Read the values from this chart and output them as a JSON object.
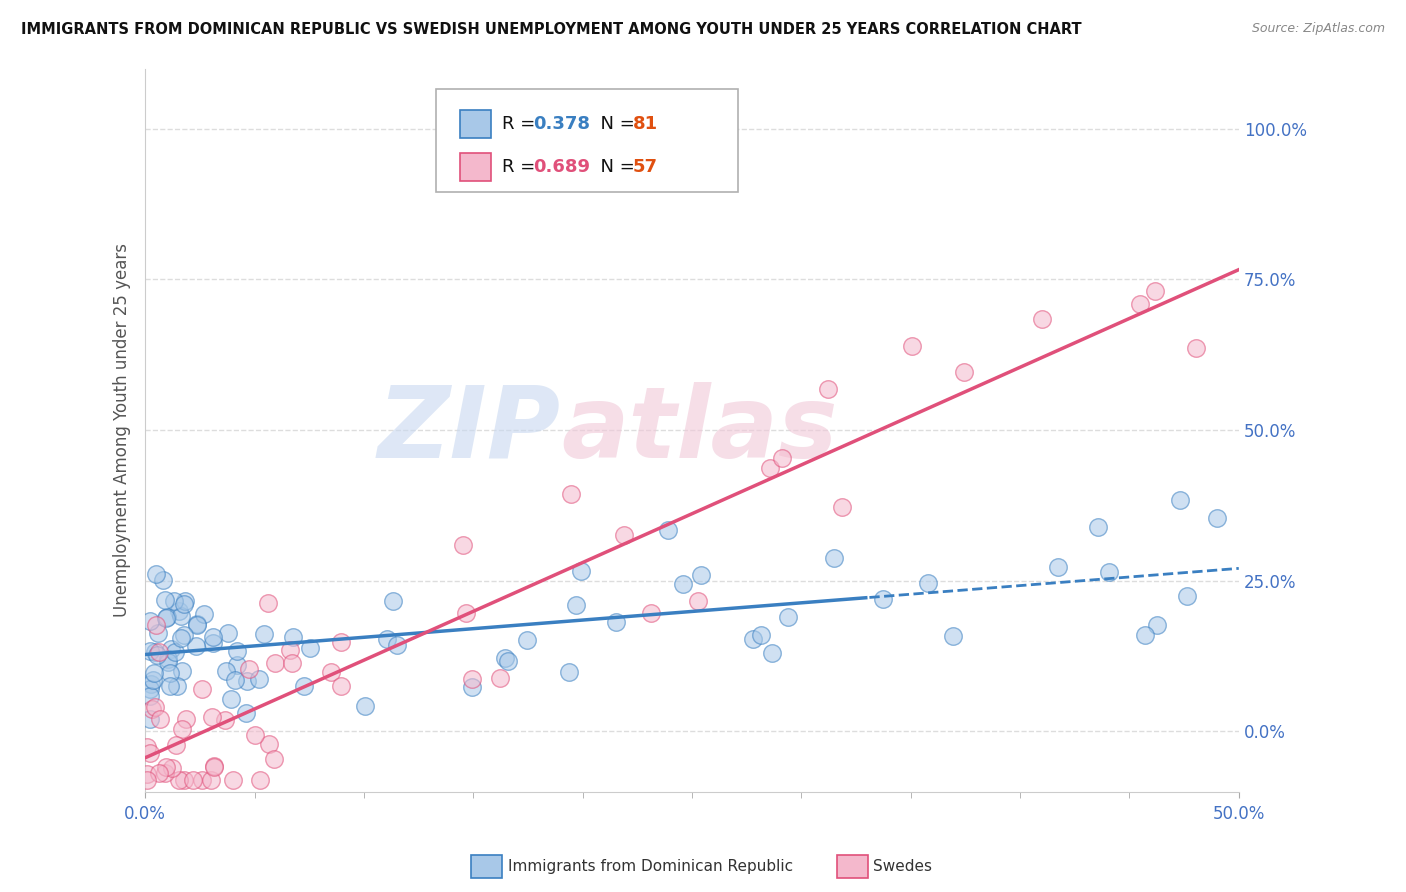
{
  "title": "IMMIGRANTS FROM DOMINICAN REPUBLIC VS SWEDISH UNEMPLOYMENT AMONG YOUTH UNDER 25 YEARS CORRELATION CHART",
  "source": "Source: ZipAtlas.com",
  "ylabel": "Unemployment Among Youth under 25 years",
  "ytick_vals": [
    0,
    25,
    50,
    75,
    100
  ],
  "xlim": [
    0,
    50
  ],
  "ylim": [
    -10,
    110
  ],
  "watermark_zip": "ZIP",
  "watermark_atlas": "atlas",
  "legend_blue_r": "R = 0.378",
  "legend_blue_n": "N = 81",
  "legend_pink_r": "R = 0.689",
  "legend_pink_n": "N = 57",
  "blue_color": "#a8c8e8",
  "pink_color": "#f4b8cc",
  "blue_line_color": "#3a7fc1",
  "pink_line_color": "#e0507a",
  "blue_r_color": "#3a7fc1",
  "pink_r_color": "#e0507a",
  "n_color": "#e05010",
  "title_color": "#111111",
  "source_color": "#888888",
  "ylabel_color": "#555555",
  "tick_color": "#4472c4",
  "grid_color": "#dddddd",
  "legend_border_color": "#b0b0b0",
  "blue_scatter_seed": 77,
  "pink_scatter_seed": 88
}
